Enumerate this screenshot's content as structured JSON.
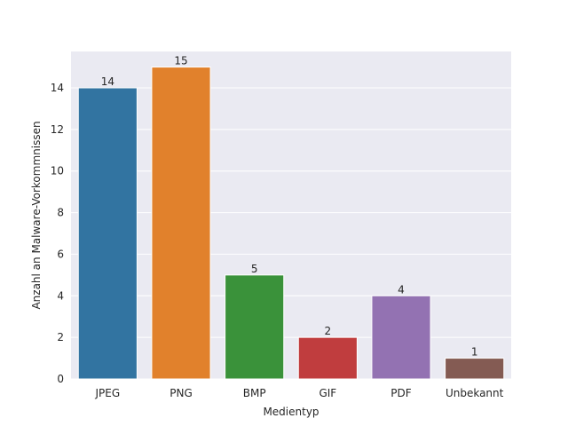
{
  "chart_data": {
    "type": "bar",
    "title": "",
    "xlabel": "Medientyp",
    "ylabel": "Anzahl an Malware-Vorkommnissen",
    "categories": [
      "JPEG",
      "PNG",
      "BMP",
      "GIF",
      "PDF",
      "Unbekannt"
    ],
    "values": [
      14,
      15,
      5,
      2,
      4,
      1
    ],
    "ylim": [
      0,
      15.75
    ],
    "yticks": [
      0,
      2,
      4,
      6,
      8,
      10,
      12,
      14
    ],
    "grid": true,
    "background_color": "#eaeaf2",
    "colors": [
      "#3274a1",
      "#e1812c",
      "#3a923a",
      "#c03d3e",
      "#9372b2",
      "#845b53"
    ],
    "data_labels": [
      "14",
      "15",
      "5",
      "2",
      "4",
      "1"
    ]
  }
}
